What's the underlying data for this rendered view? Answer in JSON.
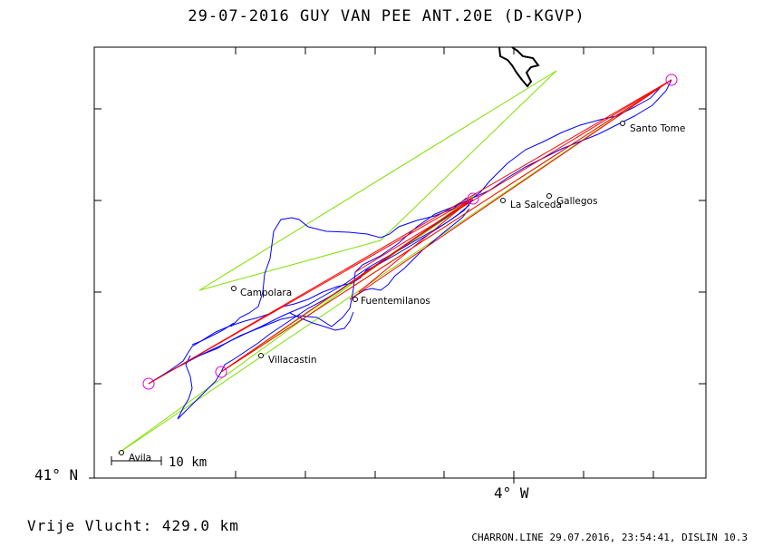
{
  "header": {
    "title": "29-07-2016    GUY VAN PEE    ANT.20E (D-KGVP)"
  },
  "axes": {
    "lat_label": "41° N",
    "lon_label": "4° W"
  },
  "footer": {
    "distance": "Vrije Vlucht:  429.0 km",
    "credit": "CHARRON.LINE 29.07.2016, 23:54:41, DISLIN 10.3"
  },
  "scale_bar": {
    "label": "10 km"
  },
  "places": {
    "santo_tome": "Santo Tome",
    "gallegos": "Gallegos",
    "la_salceda": "La Salceda",
    "campolara": "Campolara",
    "fuentemilanos": "Fuentemilanos",
    "villacastin": "Villacastin",
    "avila": "Avila"
  },
  "colors": {
    "track": "#0000ff",
    "task_line": "#ff0000",
    "triangle": "#80e000",
    "turnpoint": "#e000e0"
  }
}
